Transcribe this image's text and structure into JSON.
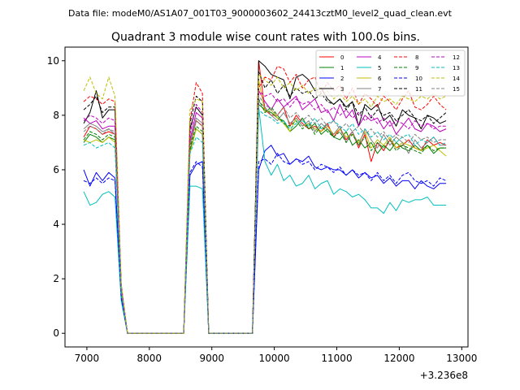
{
  "header": {
    "data_file": "Data file: modeM0/AS1A07_001T03_9000003602_24413cztM0_level2_quad_clean.evt"
  },
  "chart_data": {
    "type": "line",
    "title": "Quadrant 3 module wise count rates with 100.0s bins.",
    "xlabel": "",
    "ylabel": "",
    "x_offset_label": "+3.236e8",
    "xlim": [
      6650,
      13100
    ],
    "ylim": [
      -0.5,
      10.5
    ],
    "xticks": [
      7000,
      8000,
      9000,
      10000,
      11000,
      12000,
      13000
    ],
    "xtick_labels": [
      "7000",
      "8000",
      "9000",
      "10000",
      "11000",
      "12000",
      "13000"
    ],
    "yticks": [
      0,
      2,
      4,
      6,
      8,
      10
    ],
    "ytick_labels": [
      "0",
      "2",
      "4",
      "6",
      "8",
      "10"
    ],
    "grid": false,
    "legend_position": "top-right",
    "legend_columns": 4,
    "x": [
      6950,
      7050,
      7150,
      7250,
      7350,
      7450,
      7550,
      7650,
      7750,
      7850,
      7950,
      8050,
      8150,
      8250,
      8350,
      8450,
      8550,
      8650,
      8750,
      8850,
      8950,
      9050,
      9150,
      9250,
      9350,
      9450,
      9550,
      9650,
      9750,
      9850,
      9950,
      10050,
      10150,
      10250,
      10350,
      10450,
      10550,
      10650,
      10750,
      10850,
      10950,
      11050,
      11150,
      11250,
      11350,
      11450,
      11550,
      11650,
      11750,
      11850,
      11950,
      12050,
      12150,
      12250,
      12350,
      12450,
      12550,
      12650,
      12750
    ],
    "series": [
      {
        "name": "0",
        "color": "#ff0000",
        "dash": false,
        "values": [
          7.2,
          7.6,
          7.5,
          7.3,
          7.4,
          7.3,
          1.6,
          0,
          0,
          0,
          0,
          0,
          0,
          0,
          0,
          0,
          0,
          6.9,
          7.8,
          7.6,
          0,
          0,
          0,
          0,
          0,
          0,
          0,
          0,
          10.0,
          8.2,
          8.0,
          8.0,
          8.3,
          7.6,
          8.0,
          7.7,
          7.5,
          7.6,
          7.4,
          7.7,
          7.2,
          7.5,
          7.1,
          7.4,
          6.8,
          7.3,
          6.3,
          7.0,
          6.7,
          7.1,
          6.8,
          6.9,
          7.1,
          6.8,
          6.7,
          7.1,
          6.9,
          7.0,
          6.9
        ]
      },
      {
        "name": "1",
        "color": "#008000",
        "dash": false,
        "values": [
          7.0,
          7.3,
          7.2,
          7.0,
          7.2,
          7.1,
          1.6,
          0,
          0,
          0,
          0,
          0,
          0,
          0,
          0,
          0,
          0,
          6.7,
          7.5,
          7.3,
          0,
          0,
          0,
          0,
          0,
          0,
          0,
          0,
          8.4,
          8.2,
          8.1,
          7.9,
          7.8,
          7.4,
          7.6,
          7.9,
          7.5,
          7.7,
          7.3,
          7.5,
          7.2,
          7.1,
          7.4,
          6.9,
          7.1,
          6.8,
          7.0,
          6.6,
          6.9,
          6.7,
          7.0,
          6.8,
          6.7,
          6.9,
          6.7,
          6.9,
          6.6,
          6.8,
          6.8
        ]
      },
      {
        "name": "2",
        "color": "#0000ff",
        "dash": false,
        "values": [
          6.0,
          5.4,
          5.9,
          5.6,
          5.9,
          5.7,
          1.3,
          0,
          0,
          0,
          0,
          0,
          0,
          0,
          0,
          0,
          0,
          5.8,
          6.2,
          6.3,
          0,
          0,
          0,
          0,
          0,
          0,
          0,
          0,
          6.0,
          6.7,
          6.9,
          6.5,
          6.6,
          6.2,
          6.4,
          6.3,
          6.5,
          6.1,
          6.0,
          6.1,
          6.0,
          6.0,
          5.8,
          6.0,
          5.7,
          5.9,
          5.7,
          5.8,
          5.5,
          5.7,
          5.4,
          5.6,
          5.6,
          5.3,
          5.6,
          5.4,
          5.3,
          5.5,
          5.5
        ]
      },
      {
        "name": "3",
        "color": "#000000",
        "dash": false,
        "values": [
          7.7,
          8.1,
          8.9,
          7.9,
          8.2,
          8.2,
          1.7,
          0,
          0,
          0,
          0,
          0,
          0,
          0,
          0,
          0,
          0,
          7.5,
          8.3,
          8.0,
          0,
          0,
          0,
          0,
          0,
          0,
          0,
          0,
          10.0,
          9.8,
          9.5,
          9.4,
          9.3,
          8.6,
          9.4,
          9.5,
          9.3,
          8.9,
          9.0,
          8.6,
          8.4,
          8.6,
          8.3,
          8.5,
          7.6,
          8.4,
          8.2,
          8.4,
          7.8,
          8.0,
          7.6,
          8.2,
          8.0,
          7.9,
          7.5,
          8.0,
          7.9,
          7.7,
          7.8
        ]
      },
      {
        "name": "4",
        "color": "#bf00bf",
        "dash": false,
        "values": [
          7.9,
          7.7,
          7.8,
          7.5,
          7.6,
          7.6,
          1.6,
          0,
          0,
          0,
          0,
          0,
          0,
          0,
          0,
          0,
          0,
          7.1,
          8.1,
          7.9,
          0,
          0,
          0,
          0,
          0,
          0,
          0,
          0,
          8.9,
          8.5,
          8.2,
          8.6,
          8.3,
          8.5,
          8.7,
          8.2,
          8.4,
          8.6,
          8.1,
          8.2,
          7.8,
          8.4,
          7.9,
          8.2,
          7.6,
          8.0,
          7.8,
          7.9,
          7.5,
          7.8,
          7.3,
          7.6,
          7.9,
          7.5,
          7.4,
          7.7,
          7.6,
          7.4,
          7.5
        ]
      },
      {
        "name": "5",
        "color": "#00bfbf",
        "dash": false,
        "values": [
          5.2,
          4.7,
          4.8,
          5.1,
          5.2,
          5.0,
          1.2,
          0,
          0,
          0,
          0,
          0,
          0,
          0,
          0,
          0,
          0,
          5.4,
          5.4,
          5.3,
          0,
          0,
          0,
          0,
          0,
          0,
          0,
          0,
          8.3,
          6.3,
          5.8,
          6.2,
          5.6,
          5.8,
          5.4,
          5.5,
          5.8,
          5.3,
          5.5,
          5.6,
          5.1,
          5.3,
          5.2,
          5.0,
          5.1,
          4.9,
          4.6,
          4.6,
          4.4,
          4.8,
          4.5,
          4.9,
          4.8,
          4.9,
          4.9,
          5.0,
          4.7,
          4.7,
          4.7
        ]
      },
      {
        "name": "6",
        "color": "#bfbf00",
        "dash": false,
        "values": [
          7.1,
          7.0,
          7.1,
          7.0,
          7.2,
          7.0,
          1.6,
          0,
          0,
          0,
          0,
          0,
          0,
          0,
          0,
          0,
          0,
          6.6,
          7.5,
          7.3,
          0,
          0,
          0,
          0,
          0,
          0,
          0,
          0,
          9.3,
          8.1,
          8.2,
          7.9,
          7.7,
          7.4,
          7.9,
          7.6,
          7.7,
          7.5,
          7.4,
          7.6,
          7.3,
          7.5,
          7.2,
          7.3,
          7.0,
          7.4,
          6.8,
          7.1,
          6.9,
          7.2,
          6.8,
          7.0,
          6.9,
          6.8,
          6.7,
          6.8,
          6.9,
          6.7,
          6.5
        ]
      },
      {
        "name": "7",
        "color": "#808080",
        "dash": false,
        "values": [
          7.5,
          7.7,
          7.6,
          7.4,
          7.5,
          7.3,
          1.6,
          0,
          0,
          0,
          0,
          0,
          0,
          0,
          0,
          0,
          0,
          7.0,
          7.9,
          7.7,
          0,
          0,
          0,
          0,
          0,
          0,
          0,
          0,
          8.5,
          8.3,
          8.0,
          7.8,
          8.1,
          7.7,
          7.9,
          7.6,
          7.8,
          7.4,
          7.7,
          7.5,
          7.3,
          7.6,
          7.0,
          7.4,
          6.9,
          7.5,
          7.1,
          6.8,
          7.3,
          6.9,
          7.2,
          7.0,
          6.6,
          7.1,
          6.8,
          7.0,
          7.2,
          6.9,
          6.9
        ]
      },
      {
        "name": "8",
        "color": "#ff0000",
        "dash": true,
        "values": [
          8.5,
          8.7,
          8.6,
          8.4,
          8.6,
          8.5,
          1.8,
          0,
          0,
          0,
          0,
          0,
          0,
          0,
          0,
          0,
          0,
          7.8,
          9.2,
          8.8,
          0,
          0,
          0,
          0,
          0,
          0,
          0,
          0,
          9.0,
          9.4,
          9.3,
          9.8,
          9.7,
          9.2,
          9.5,
          9.0,
          9.3,
          9.4,
          8.8,
          9.2,
          8.9,
          9.1,
          8.6,
          9.0,
          8.4,
          8.8,
          8.6,
          8.3,
          8.7,
          8.5,
          8.2,
          8.6,
          8.9,
          8.3,
          8.2,
          8.4,
          8.7,
          8.4,
          8.2
        ]
      },
      {
        "name": "9",
        "color": "#008000",
        "dash": true,
        "values": [
          7.1,
          7.4,
          7.3,
          7.1,
          7.3,
          7.2,
          1.6,
          0,
          0,
          0,
          0,
          0,
          0,
          0,
          0,
          0,
          0,
          6.8,
          7.6,
          7.4,
          0,
          0,
          0,
          0,
          0,
          0,
          0,
          0,
          8.6,
          8.1,
          8.3,
          8.0,
          7.7,
          7.6,
          7.8,
          7.5,
          7.7,
          7.3,
          7.6,
          7.4,
          7.2,
          7.4,
          7.0,
          7.3,
          6.9,
          7.2,
          6.7,
          7.0,
          6.8,
          7.1,
          6.7,
          6.9,
          6.8,
          6.7,
          6.6,
          6.9,
          6.7,
          6.8,
          6.8
        ]
      },
      {
        "name": "10",
        "color": "#0000ff",
        "dash": true,
        "values": [
          5.6,
          5.5,
          5.7,
          5.5,
          5.7,
          5.6,
          1.3,
          0,
          0,
          0,
          0,
          0,
          0,
          0,
          0,
          0,
          0,
          5.9,
          6.3,
          6.1,
          0,
          0,
          0,
          0,
          0,
          0,
          0,
          0,
          6.3,
          6.4,
          6.2,
          6.6,
          6.3,
          6.2,
          6.4,
          6.2,
          6.3,
          6.0,
          6.2,
          6.1,
          5.9,
          6.1,
          5.8,
          6.0,
          5.8,
          5.9,
          5.6,
          5.9,
          5.6,
          5.8,
          5.5,
          5.8,
          5.9,
          5.6,
          5.5,
          5.6,
          5.4,
          5.7,
          5.6
        ]
      },
      {
        "name": "11",
        "color": "#000000",
        "dash": true,
        "values": [
          8.2,
          8.4,
          8.7,
          8.1,
          8.3,
          8.3,
          1.7,
          0,
          0,
          0,
          0,
          0,
          0,
          0,
          0,
          0,
          0,
          7.7,
          8.7,
          8.5,
          0,
          0,
          0,
          0,
          0,
          0,
          0,
          0,
          9.6,
          9.0,
          9.3,
          8.8,
          9.1,
          8.7,
          9.0,
          8.8,
          8.9,
          8.6,
          8.8,
          8.5,
          8.4,
          8.6,
          8.2,
          8.5,
          8.0,
          8.3,
          7.9,
          8.2,
          8.0,
          8.1,
          7.8,
          8.0,
          8.2,
          7.9,
          7.8,
          8.0,
          7.7,
          7.9,
          8.1
        ]
      },
      {
        "name": "12",
        "color": "#bf00bf",
        "dash": true,
        "values": [
          7.8,
          8.0,
          7.9,
          7.7,
          7.9,
          7.8,
          1.7,
          0,
          0,
          0,
          0,
          0,
          0,
          0,
          0,
          0,
          0,
          7.3,
          8.4,
          8.1,
          0,
          0,
          0,
          0,
          0,
          0,
          0,
          0,
          8.9,
          8.7,
          8.8,
          8.5,
          8.6,
          8.3,
          8.6,
          8.4,
          8.5,
          8.2,
          8.4,
          8.1,
          8.3,
          8.0,
          8.2,
          7.9,
          8.1,
          7.8,
          8.0,
          7.7,
          7.9,
          7.6,
          7.8,
          7.7,
          7.5,
          7.8,
          7.6,
          7.7,
          7.5,
          7.6,
          7.6
        ]
      },
      {
        "name": "13",
        "color": "#00bfbf",
        "dash": true,
        "values": [
          6.9,
          7.0,
          6.8,
          6.9,
          7.0,
          6.8,
          1.5,
          0,
          0,
          0,
          0,
          0,
          0,
          0,
          0,
          0,
          0,
          6.6,
          7.2,
          7.0,
          0,
          0,
          0,
          0,
          0,
          0,
          0,
          0,
          8.2,
          8.0,
          7.9,
          7.7,
          7.8,
          7.5,
          7.7,
          7.8,
          7.6,
          7.9,
          7.5,
          7.7,
          7.8,
          7.6,
          7.4,
          7.7,
          7.3,
          7.5,
          7.2,
          7.4,
          7.1,
          7.3,
          7.0,
          7.2,
          7.3,
          6.9,
          7.1,
          7.0,
          7.2,
          6.9,
          7.0
        ]
      },
      {
        "name": "14",
        "color": "#bfbf00",
        "dash": true,
        "values": [
          8.9,
          9.4,
          8.8,
          8.6,
          9.4,
          8.7,
          1.8,
          0,
          0,
          0,
          0,
          0,
          0,
          0,
          0,
          0,
          0,
          8.2,
          8.6,
          8.5,
          0,
          0,
          0,
          0,
          0,
          0,
          0,
          0,
          9.5,
          9.3,
          9.1,
          9.4,
          9.0,
          9.2,
          8.9,
          9.1,
          8.8,
          9.0,
          8.7,
          8.9,
          8.6,
          8.8,
          8.5,
          8.7,
          8.4,
          8.6,
          8.3,
          8.7,
          8.5,
          8.6,
          8.4,
          8.7,
          8.6,
          8.5,
          8.7,
          8.6,
          8.8,
          8.6,
          8.7
        ]
      },
      {
        "name": "15",
        "color": "#808080",
        "dash": true,
        "values": [
          7.4,
          7.6,
          7.5,
          7.3,
          7.5,
          7.4,
          1.6,
          0,
          0,
          0,
          0,
          0,
          0,
          0,
          0,
          0,
          0,
          6.9,
          7.8,
          7.6,
          0,
          0,
          0,
          0,
          0,
          0,
          0,
          0,
          8.7,
          8.4,
          8.2,
          8.0,
          8.3,
          7.9,
          8.1,
          7.8,
          8.0,
          7.7,
          7.9,
          7.6,
          7.8,
          7.5,
          7.7,
          7.4,
          7.6,
          7.3,
          7.5,
          7.2,
          7.4,
          7.1,
          7.3,
          7.2,
          7.0,
          7.3,
          7.1,
          7.2,
          7.0,
          7.1,
          7.1
        ]
      }
    ]
  }
}
